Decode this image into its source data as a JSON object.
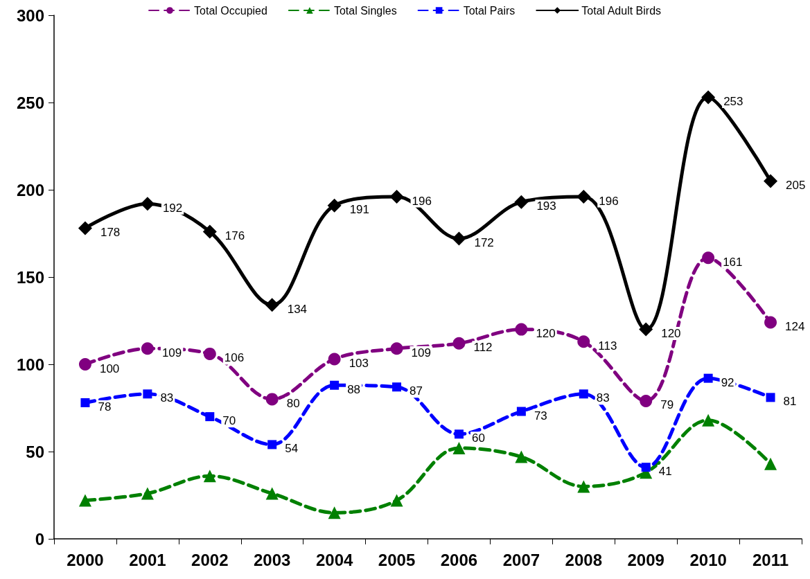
{
  "chart_data": {
    "type": "line",
    "categories": [
      "2000",
      "2001",
      "2002",
      "2003",
      "2004",
      "2005",
      "2006",
      "2007",
      "2008",
      "2009",
      "2010",
      "2011"
    ],
    "series": [
      {
        "name": "Total Occupied",
        "color": "#800080",
        "marker": "circle",
        "line_style": "dashed",
        "data_labels": true,
        "values": [
          100,
          109,
          106,
          80,
          103,
          109,
          112,
          120,
          113,
          79,
          161,
          124
        ]
      },
      {
        "name": "Total Singles",
        "color": "#008000",
        "marker": "triangle",
        "line_style": "dashed",
        "values": [
          22,
          26,
          36,
          26,
          15,
          22,
          52,
          47,
          30,
          38,
          68,
          43
        ]
      },
      {
        "name": "Total Pairs",
        "color": "#0000ff",
        "marker": "square",
        "line_style": "dashed",
        "data_labels": true,
        "values": [
          78,
          83,
          70,
          54,
          88,
          87,
          60,
          73,
          83,
          41,
          92,
          81
        ]
      },
      {
        "name": "Total Adult Birds",
        "color": "#000000",
        "marker": "diamond",
        "line_style": "solid",
        "data_labels": true,
        "values": [
          178,
          192,
          176,
          134,
          191,
          196,
          172,
          193,
          196,
          120,
          253,
          205
        ]
      }
    ],
    "ylim": [
      0,
      300
    ],
    "yticks": [
      0,
      50,
      100,
      150,
      200,
      250,
      300
    ],
    "grid": false,
    "legend": "top"
  }
}
